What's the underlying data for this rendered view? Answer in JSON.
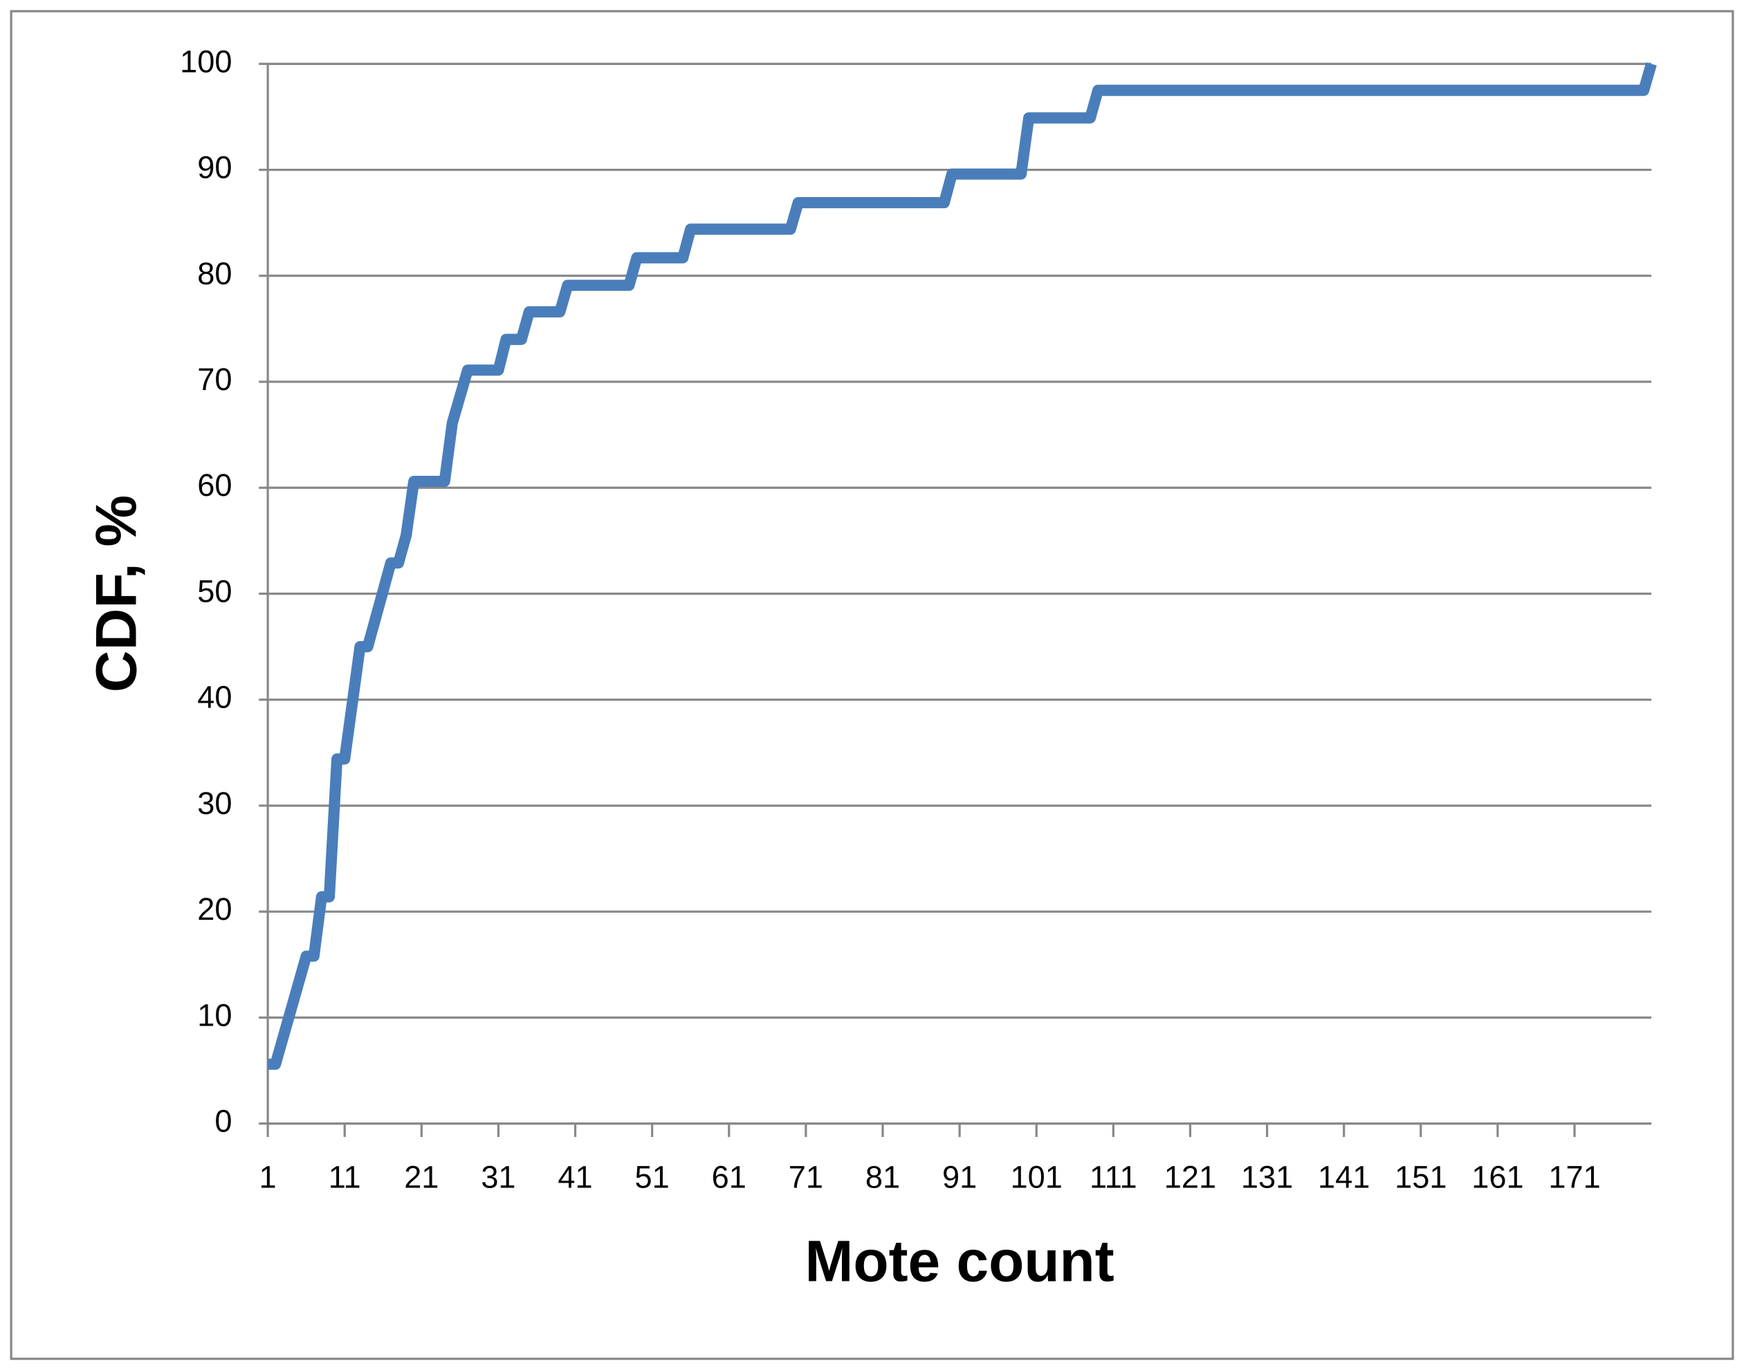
{
  "chart_data": {
    "type": "line",
    "x_label": "Mote count",
    "y_label": "CDF, %",
    "x": [
      1,
      2,
      6,
      7,
      8,
      9,
      10,
      11,
      13,
      14,
      17,
      18,
      19,
      20,
      24,
      25,
      27,
      31,
      32,
      34,
      35,
      39,
      40,
      48,
      49,
      55,
      56,
      69,
      70,
      89,
      90,
      99,
      100,
      108,
      109,
      180,
      181
    ],
    "series": [
      {
        "name": "CDF",
        "color": "#4a7ebb",
        "values": [
          5.6,
          5.6,
          15.8,
          15.8,
          21.4,
          21.4,
          34.4,
          34.4,
          45,
          45,
          52.9,
          52.9,
          55.5,
          60.6,
          60.6,
          66.1,
          71.1,
          71.1,
          74,
          74,
          76.6,
          76.6,
          79.1,
          79.1,
          81.7,
          81.7,
          84.4,
          84.4,
          86.9,
          86.9,
          89.6,
          89.6,
          94.9,
          94.9,
          97.5,
          97.5,
          100
        ]
      }
    ],
    "xlim": [
      1,
      181
    ],
    "xticks": [
      1,
      11,
      21,
      31,
      41,
      51,
      61,
      71,
      81,
      91,
      101,
      111,
      121,
      131,
      141,
      151,
      161,
      171
    ],
    "ylim": [
      0,
      100
    ],
    "yticks": [
      0,
      10,
      20,
      30,
      40,
      50,
      60,
      70,
      80,
      90,
      100
    ],
    "grid": true
  }
}
